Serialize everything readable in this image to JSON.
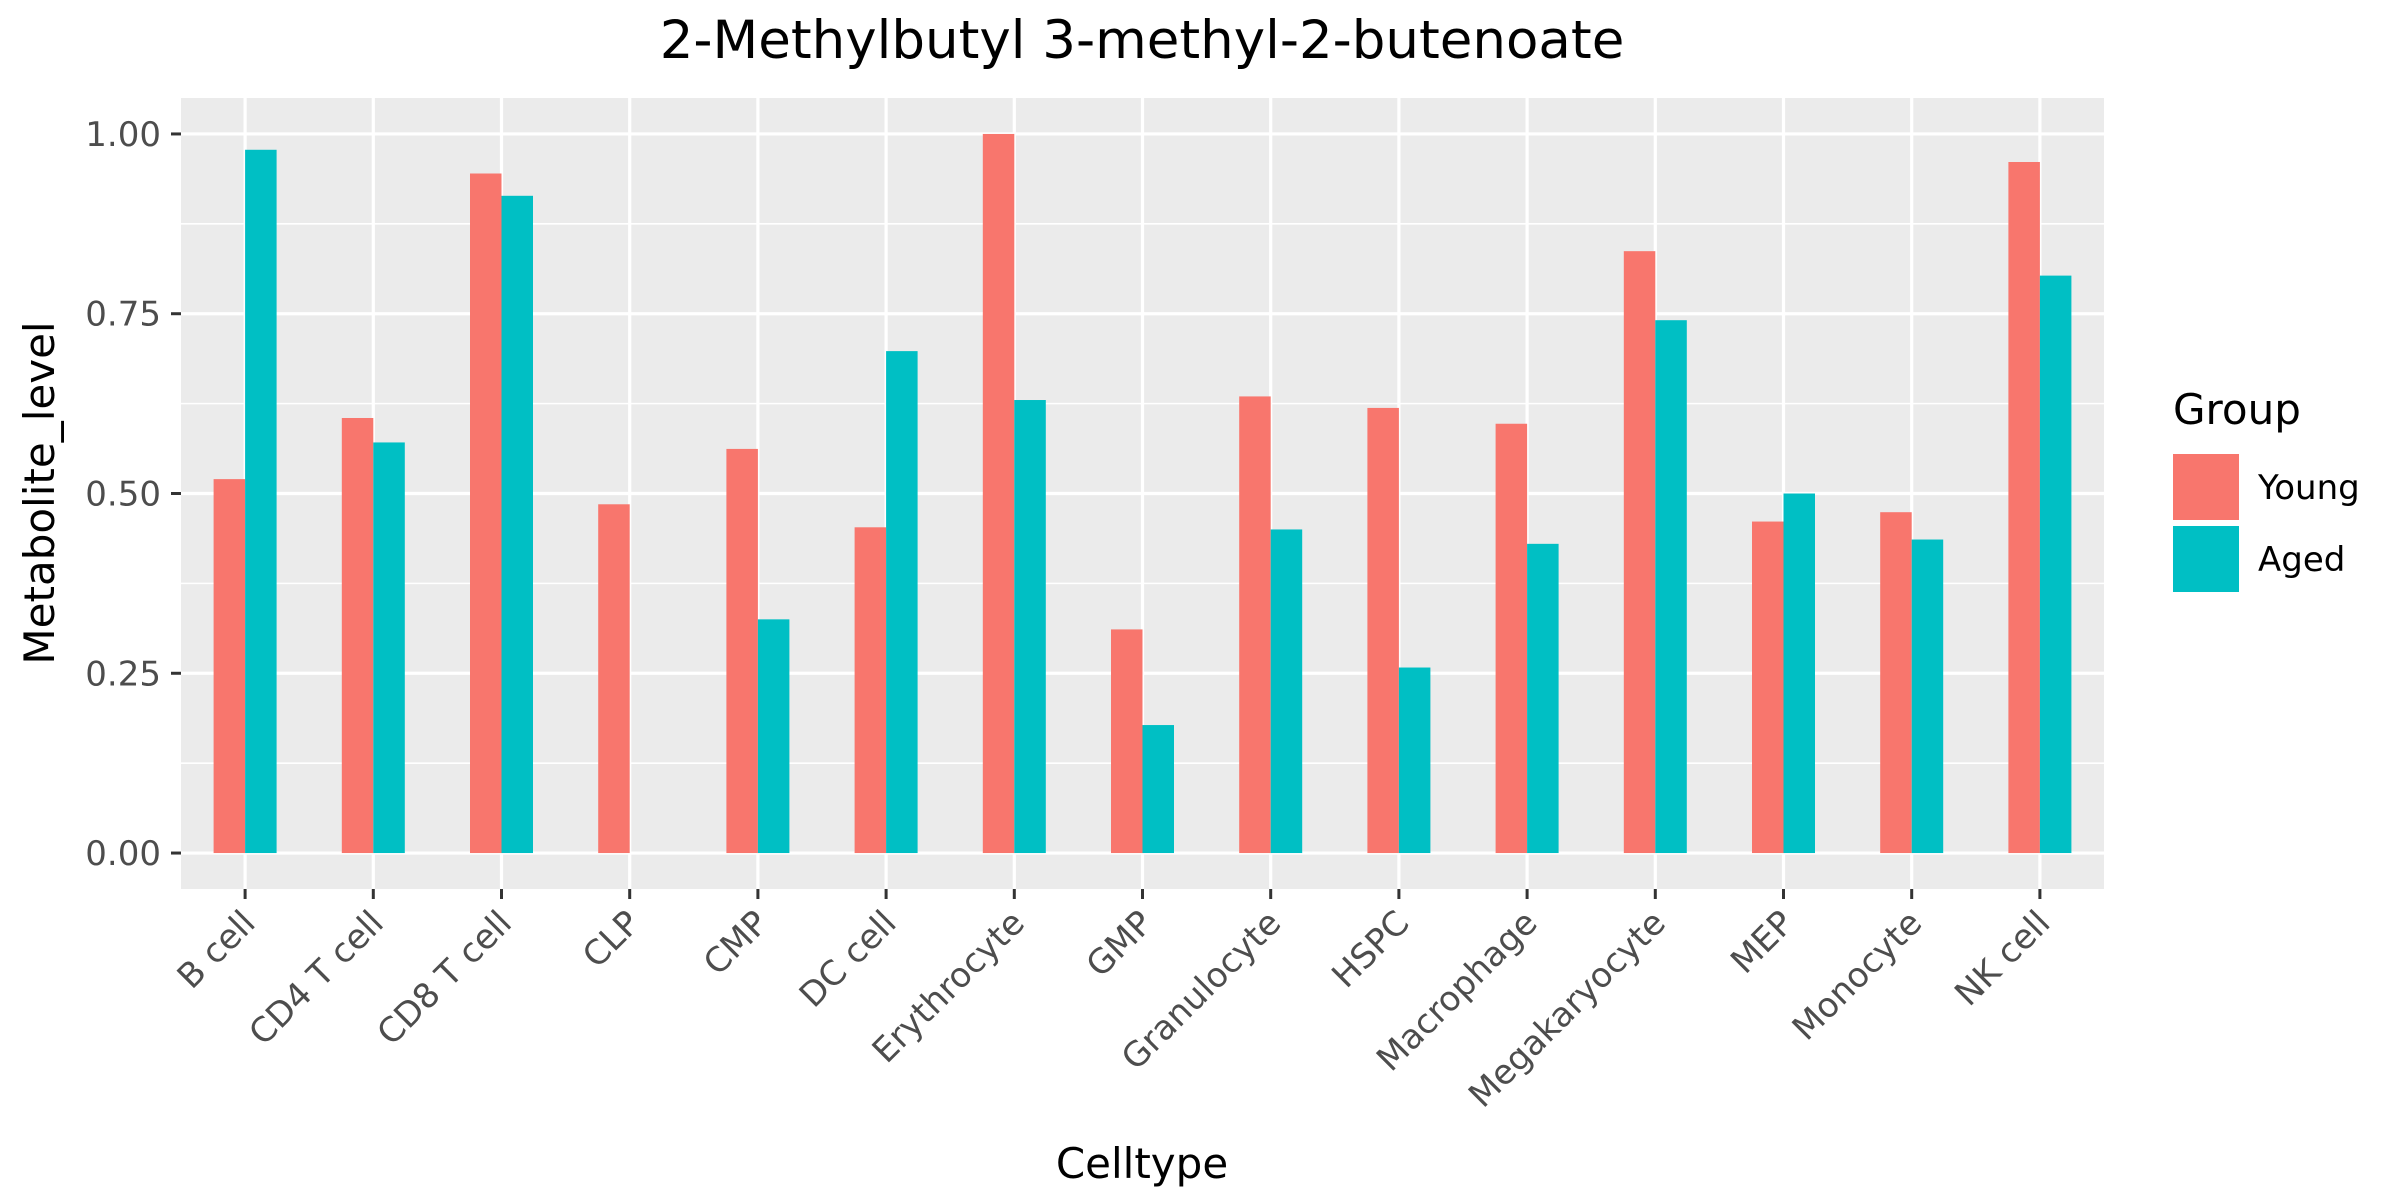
{
  "chart_data": {
    "type": "bar",
    "title": "2-Methylbutyl 3-methyl-2-butenoate",
    "xlabel": "Celltype",
    "ylabel": "Metabolite_level",
    "categories": [
      "B cell",
      "CD4 T cell",
      "CD8 T cell",
      "CLP",
      "CMP",
      "DC cell",
      "Erythrocyte",
      "GMP",
      "Granulocyte",
      "HSPC",
      "Macrophage",
      "Megakaryocyte",
      "MEP",
      "Monocyte",
      "NK cell"
    ],
    "series": [
      {
        "name": "Young",
        "color": "#F8766D",
        "values": [
          0.52,
          0.605,
          0.945,
          0.485,
          0.562,
          0.453,
          1.0,
          0.311,
          0.635,
          0.619,
          0.597,
          0.837,
          0.461,
          0.474,
          0.961
        ]
      },
      {
        "name": "Aged",
        "color": "#00BFC4",
        "values": [
          0.978,
          0.571,
          0.914,
          null,
          0.325,
          0.698,
          0.63,
          0.178,
          0.45,
          0.258,
          0.43,
          0.741,
          0.5,
          0.436,
          0.803
        ]
      }
    ],
    "ylim": [
      -0.05,
      1.05
    ],
    "yticks": [
      0,
      0.25,
      0.5,
      0.75,
      1.0
    ],
    "ytick_labels": [
      "0.00",
      "0.25",
      "0.50",
      "0.75",
      "1.00"
    ],
    "legend_title": "Group",
    "legend_position": "right",
    "grid": true,
    "panel_background": "#EBEBEB",
    "grid_color": "#FFFFFF"
  }
}
